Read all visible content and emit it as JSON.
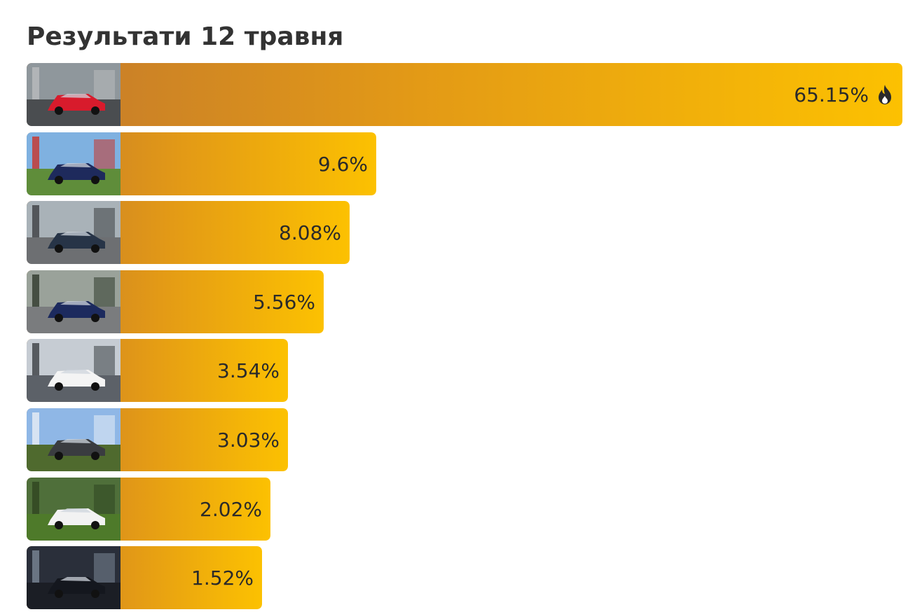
{
  "title": "Результати 12 травня",
  "chart_data": {
    "type": "bar",
    "orientation": "horizontal",
    "title": "Результати 12 травня",
    "unit": "%",
    "max": 65.15,
    "series": [
      {
        "values": [
          65.15,
          9.6,
          8.08,
          5.56,
          3.54,
          3.03,
          2.02,
          1.52
        ]
      }
    ],
    "labels": [
      "65.15%",
      "9.6%",
      "8.08%",
      "5.56%",
      "3.54%",
      "3.03%",
      "2.02%",
      "1.52%"
    ],
    "leader_icon": "fire-icon",
    "colors": {
      "gradient_start": "#c47a2c",
      "gradient_mid": "#e39a16",
      "gradient_end": "#fcc101",
      "text": "#2a2a2a",
      "title": "#333333"
    },
    "thumbnails": [
      "car-photo-icon",
      "car-photo-icon",
      "car-photo-icon",
      "car-photo-icon",
      "car-photo-icon",
      "car-photo-icon",
      "car-photo-icon",
      "car-photo-icon"
    ]
  }
}
